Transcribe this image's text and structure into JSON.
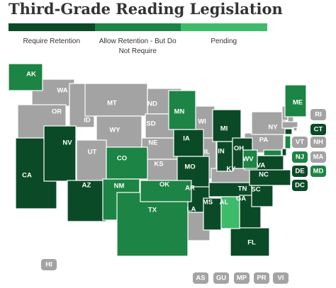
{
  "title": "Third-Grade Reading Legislation",
  "legend": [
    {
      "label": "Require Retention",
      "color": "#0b4a27",
      "states": [
        "CA",
        "NV",
        "AZ",
        "IA",
        "MO",
        "AR",
        "MI",
        "IN",
        "OH",
        "TN",
        "MS",
        "GA",
        "FL",
        "SC",
        "NC",
        "VA",
        "CT",
        "DE",
        "DC"
      ]
    },
    {
      "label": "Allow Retention - But Do Not Require",
      "color": "#1c8444",
      "states": [
        "AK",
        "CO",
        "NM",
        "TX",
        "OK",
        "MN",
        "WV",
        "ME",
        "NJ",
        "MD"
      ]
    },
    {
      "label": "Pending",
      "color": "#3dbb6a",
      "states": [
        "AL"
      ]
    }
  ],
  "other_states": {
    "color": "#a3a3a3",
    "states": [
      "WA",
      "OR",
      "ID",
      "MT",
      "WY",
      "UT",
      "ND",
      "SD",
      "NE",
      "KS",
      "LA",
      "WI",
      "IL",
      "KY",
      "PA",
      "NY",
      "VT",
      "NH",
      "MA",
      "RI",
      "HI",
      "AS",
      "GU",
      "MP",
      "PR",
      "VI"
    ]
  }
}
